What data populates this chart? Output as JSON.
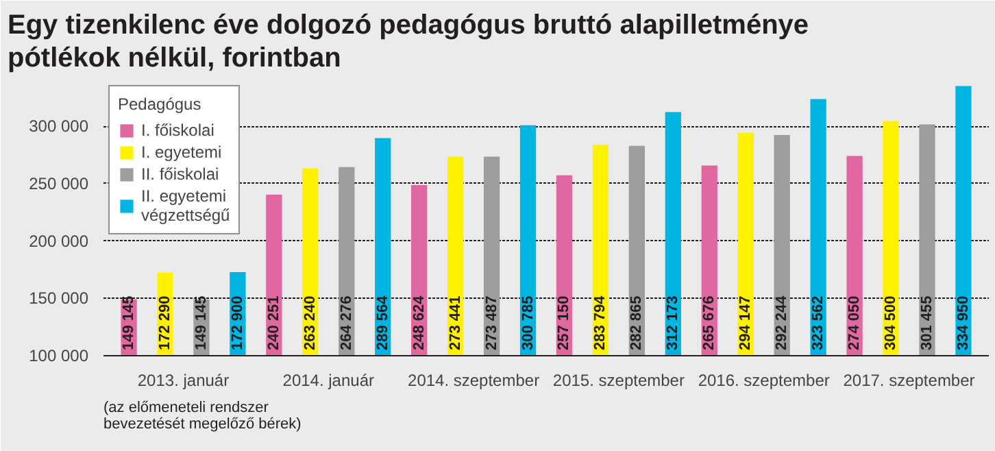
{
  "chart_data": {
    "type": "bar",
    "title": "Egy tizenkilenc éve dolgozó pedagógus bruttó alapilletménye pótlékok nélkül, forintban",
    "categories": [
      "2013. január",
      "2014. január",
      "2014. szeptember",
      "2015. szeptember",
      "2016. szeptember",
      "2017. szeptember"
    ],
    "legend_title": "Pedagógus",
    "series": [
      {
        "name": "I. főiskolai",
        "color": "#e0679f",
        "values": [
          149145,
          240251,
          248624,
          257150,
          265676,
          274050
        ],
        "value_labels": [
          "149 145",
          "240 251",
          "248 624",
          "257 150",
          "265 676",
          "274 050"
        ]
      },
      {
        "name": "I. egyetemi",
        "color": "#fff200",
        "values": [
          172290,
          263240,
          273441,
          283794,
          294147,
          304500
        ],
        "value_labels": [
          "172 290",
          "263 240",
          "273 441",
          "283 794",
          "294 147",
          "304 500"
        ]
      },
      {
        "name": "II. főiskolai",
        "color": "#9d9d9c",
        "values": [
          149145,
          264276,
          273487,
          282865,
          292244,
          301455
        ],
        "value_labels": [
          "149 145",
          "264 276",
          "273 487",
          "282 865",
          "292 244",
          "301 455"
        ]
      },
      {
        "name": "II. egyetemi végzettségű",
        "color": "#00b5e2",
        "values": [
          172900,
          289564,
          300785,
          312173,
          323562,
          334950
        ],
        "value_labels": [
          "172 900",
          "289 564",
          "300 785",
          "312 173",
          "323 562",
          "334 950"
        ]
      }
    ],
    "ylim": [
      100000,
      340000
    ],
    "yticks": [
      {
        "value": 100000,
        "label": "100 000"
      },
      {
        "value": 150000,
        "label": "150 000"
      },
      {
        "value": 200000,
        "label": "200 000"
      },
      {
        "value": 250000,
        "label": "250 000"
      },
      {
        "value": 300000,
        "label": "300 000"
      }
    ],
    "grid": "y",
    "legend": "top left",
    "annotations": [
      "(az előmeneteli rendszer bevezetését megelőző bérek)"
    ]
  }
}
